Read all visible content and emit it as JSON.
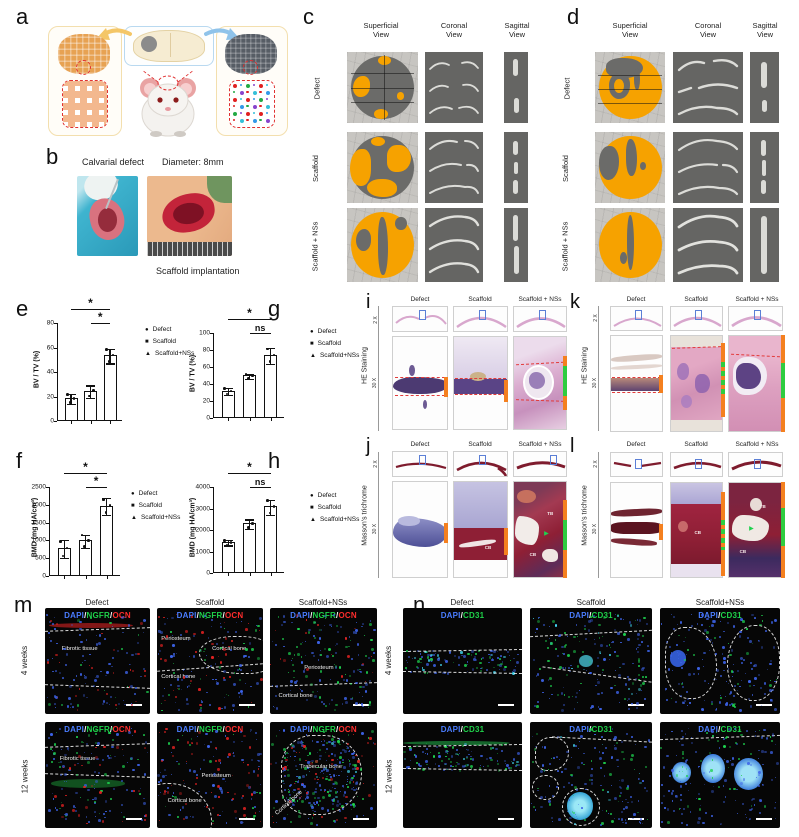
{
  "colors": {
    "microct_orange": "#F6A200",
    "indicator_orange": "#F4801F",
    "indicator_green": "#2ECC40",
    "dapi": "#4a7dff",
    "ngfr": "#1fd24a",
    "ocn": "#ff2d2d",
    "cd31": "#1fd24a",
    "slash": "#ffffff",
    "dot_grid": [
      "#e02020",
      "#3399e8",
      "#22aa44",
      "#8844cc",
      "#e02020",
      "#35c0d8"
    ]
  },
  "panel_a": {
    "label": "a"
  },
  "panel_b": {
    "label": "b",
    "title_left": "Calvarial defect",
    "title_right": "Diameter: 8mm",
    "caption": "Scaffold implantation"
  },
  "panel_c": {
    "label": "c",
    "headers": [
      {
        "l1": "Superficial",
        "l2": "View"
      },
      {
        "l1": "Coronal",
        "l2": "View"
      },
      {
        "l1": "Sagittal",
        "l2": "View"
      }
    ],
    "rows": [
      "Defect",
      "Scaffold",
      "Scaffold + NSs"
    ]
  },
  "panel_d": {
    "label": "d",
    "headers": [
      {
        "l1": "Superficial",
        "l2": "View"
      },
      {
        "l1": "Coronal",
        "l2": "View"
      },
      {
        "l1": "Sagittal",
        "l2": "View"
      }
    ],
    "rows": [
      "Defect",
      "Scaffold",
      "Scaffold + NSs"
    ]
  },
  "chart_data": [
    {
      "id": "e",
      "type": "bar",
      "title": "",
      "categories": [
        "Defect",
        "Scaffold",
        "Scaffold+NSs"
      ],
      "values": [
        18,
        24,
        53
      ],
      "errors": [
        4,
        5,
        6
      ],
      "ylabel": "BV / TV  (%)",
      "xlabel": "",
      "ylim": [
        0,
        80
      ],
      "yticks": [
        0,
        20,
        40,
        60,
        80
      ],
      "grid": false,
      "legend_position": "right",
      "legend": [
        "Defect",
        "Scaffold",
        "Scaffold+NSs"
      ],
      "legend_markers": [
        "●",
        "■",
        "▲"
      ],
      "significance": [
        {
          "between": [
            0,
            2
          ],
          "label": "*"
        },
        {
          "between": [
            1,
            2
          ],
          "label": "*"
        }
      ]
    },
    {
      "id": "g",
      "type": "bar",
      "title": "",
      "categories": [
        "Defect",
        "Scaffold",
        "Scaffold+NSs"
      ],
      "values": [
        31,
        49,
        73
      ],
      "errors": [
        4,
        3,
        9
      ],
      "ylabel": "BV / TV  (%)",
      "xlabel": "",
      "ylim": [
        0,
        100
      ],
      "yticks": [
        0,
        20,
        40,
        60,
        80,
        100
      ],
      "grid": false,
      "legend_position": "right",
      "legend": [
        "Defect",
        "Scaffold",
        "Scaffold+NSs"
      ],
      "legend_markers": [
        "●",
        "■",
        "▲"
      ],
      "significance": [
        {
          "between": [
            0,
            2
          ],
          "label": "*"
        },
        {
          "between": [
            1,
            2
          ],
          "label": "ns"
        }
      ]
    },
    {
      "id": "f",
      "type": "bar",
      "title": "",
      "categories": [
        "Defect",
        "Scaffold",
        "Scaffold+NSs"
      ],
      "values": [
        750,
        975,
        1950
      ],
      "errors": [
        250,
        190,
        230
      ],
      "ylabel": "BMD  (mg HA/cm³)",
      "xlabel": "",
      "ylim": [
        0,
        2500
      ],
      "yticks": [
        0,
        500,
        1000,
        1500,
        2000,
        2500
      ],
      "grid": false,
      "legend_position": "right",
      "legend": [
        "Defect",
        "Scaffold",
        "Scaffold+NSs"
      ],
      "legend_markers": [
        "●",
        "■",
        "▲"
      ],
      "significance": [
        {
          "between": [
            0,
            2
          ],
          "label": "*"
        },
        {
          "between": [
            1,
            2
          ],
          "label": "*"
        }
      ]
    },
    {
      "id": "h",
      "type": "bar",
      "title": "",
      "categories": [
        "Defect",
        "Scaffold",
        "Scaffold+NSs"
      ],
      "values": [
        1400,
        2270,
        3050
      ],
      "errors": [
        120,
        220,
        350
      ],
      "ylabel": "BMD  (mg HA/cm³)",
      "xlabel": "",
      "ylim": [
        0,
        4000
      ],
      "yticks": [
        0,
        1000,
        2000,
        3000,
        4000
      ],
      "grid": false,
      "legend_position": "right",
      "legend": [
        "Defect",
        "Scaffold",
        "Scaffold+NSs"
      ],
      "legend_markers": [
        "●",
        "■",
        "▲"
      ],
      "significance": [
        {
          "between": [
            0,
            2
          ],
          "label": "*"
        },
        {
          "between": [
            1,
            2
          ],
          "label": "ns"
        }
      ]
    }
  ],
  "chart_letters": {
    "e": "e",
    "f": "f",
    "g": "g",
    "h": "h"
  },
  "panel_i": {
    "label": "i",
    "stain": "HE Staining",
    "mags": [
      "2 X",
      "30 X"
    ],
    "cols": [
      "Defect",
      "Scaffold",
      "Scaffold + NSs"
    ]
  },
  "panel_j": {
    "label": "j",
    "stain": "Masson's trichrome",
    "mags": [
      "2 X",
      "30 X"
    ],
    "cols": [
      "Defect",
      "Scaffold",
      "Scaffold + NSs"
    ],
    "cb": "CB",
    "tb": "TB"
  },
  "panel_k": {
    "label": "k",
    "stain": "HE Staining",
    "mags": [
      "2 X",
      "30 X"
    ],
    "cols": [
      "Defect",
      "Scaffold",
      "Scaffold + NSs"
    ]
  },
  "panel_l": {
    "label": "l",
    "stain": "Masson's trichrome",
    "mags": [
      "2 X",
      "30 X"
    ],
    "cols": [
      "Defect",
      "Scaffold",
      "Scaffold + NSs"
    ],
    "cb": "CB",
    "tb": "TB"
  },
  "panel_m": {
    "label": "m",
    "cols": [
      "Defect",
      "Scaffold",
      "Scaffold+NSs"
    ],
    "rows": [
      "4 weeks",
      "12 weeks"
    ],
    "stain_parts": [
      "DAPI",
      "/",
      "NGFR",
      "/",
      "OCN"
    ],
    "images": [
      {
        "id": "m-4w-defect",
        "annotations": [
          {
            "text": "Fibrotic tissue"
          }
        ]
      },
      {
        "id": "m-4w-scaffold",
        "annotations": [
          {
            "text": "Periosteum"
          },
          {
            "text": "Cortical bone"
          },
          {
            "text": "Cortical bone"
          }
        ]
      },
      {
        "id": "m-4w-nss",
        "annotations": [
          {
            "text": "Periosteum"
          },
          {
            "text": "Cortical bone"
          }
        ]
      },
      {
        "id": "m-12w-defect",
        "annotations": [
          {
            "text": "Fibrotic tissue"
          }
        ]
      },
      {
        "id": "m-12w-scaffold",
        "annotations": [
          {
            "text": "Periosteum"
          },
          {
            "text": "Cortical bone"
          }
        ]
      },
      {
        "id": "m-12w-nss",
        "annotations": [
          {
            "text": "Trabecular bone"
          },
          {
            "text": "Cortical bone"
          }
        ]
      }
    ]
  },
  "panel_n": {
    "label": "n",
    "cols": [
      "Defect",
      "Scaffold",
      "Scaffold+NSs"
    ],
    "rows": [
      "4 weeks",
      "12 weeks"
    ],
    "stain_parts": [
      "DAPI",
      "/",
      "CD31"
    ]
  }
}
